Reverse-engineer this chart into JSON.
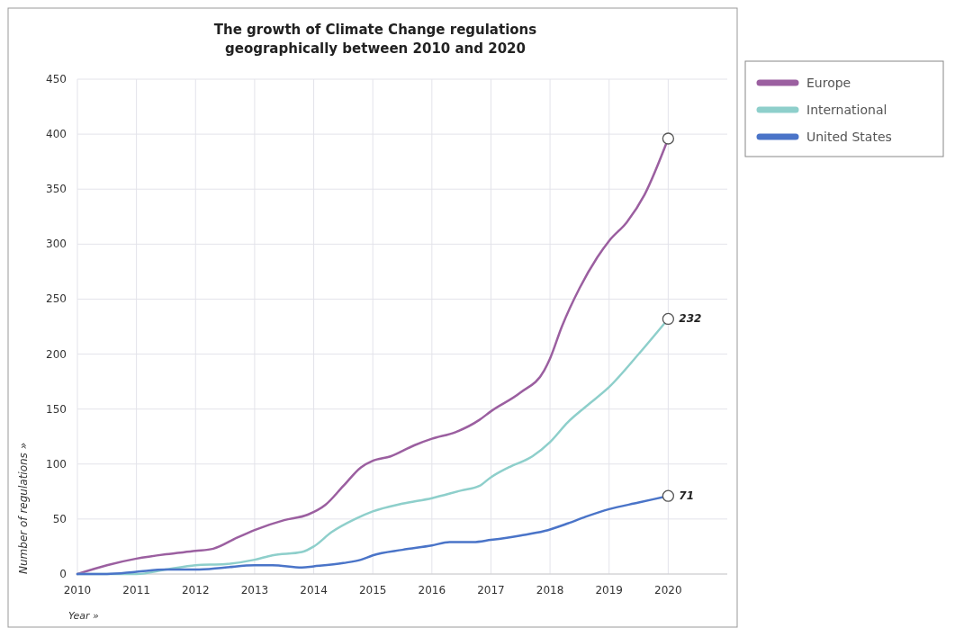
{
  "chart_data": {
    "type": "line",
    "title": "The growth of Climate Change regulations geographically between 2010 and 2020",
    "xlabel": "Year »",
    "ylabel": "Number of regulations »",
    "xlim": [
      2010,
      2021
    ],
    "xticks": [
      2010,
      2011,
      2012,
      2013,
      2014,
      2015,
      2016,
      2017,
      2018,
      2019,
      2020
    ],
    "ylim": [
      0,
      450
    ],
    "yticks": [
      0,
      50,
      100,
      150,
      200,
      250,
      300,
      350,
      400,
      450
    ],
    "grid": true,
    "legend": "top right",
    "marker": "none",
    "series": [
      {
        "name": "Europe",
        "color": "#9b5fa0",
        "x": [
          2010,
          2010.5,
          2011,
          2011.5,
          2012,
          2012.3,
          2012.7,
          2013,
          2013.5,
          2013.9,
          2014.2,
          2014.5,
          2014.8,
          2015,
          2015.3,
          2015.7,
          2016,
          2016.4,
          2016.8,
          2017,
          2017.5,
          2017.9,
          2018,
          2018.2,
          2018.5,
          2018.8,
          2019,
          2019.3,
          2019.6,
          2020
        ],
        "values": [
          0,
          8,
          14,
          18,
          21,
          23,
          33,
          40,
          49,
          54,
          63,
          80,
          97,
          103,
          107,
          117,
          123,
          129,
          140,
          148,
          165,
          185,
          196,
          225,
          260,
          288,
          303,
          320,
          345,
          396
        ],
        "value_labels": [
          null,
          null,
          null,
          null,
          null,
          null,
          null,
          null,
          null,
          null,
          null,
          null,
          null,
          null,
          null,
          null,
          null,
          null,
          null,
          null,
          null,
          null,
          null,
          null,
          null,
          null,
          null,
          null,
          null,
          null
        ]
      },
      {
        "name": "International",
        "color": "#8ecfcb",
        "x": [
          2010,
          2010.5,
          2011,
          2011.5,
          2012,
          2012.5,
          2013,
          2013.3,
          2013.8,
          2014,
          2014.3,
          2014.7,
          2015,
          2015.5,
          2016,
          2016.5,
          2016.8,
          2017,
          2017.3,
          2017.7,
          2018,
          2018.3,
          2018.6,
          2019,
          2019.5,
          2020
        ],
        "values": [
          0,
          0,
          0,
          4,
          8,
          9,
          13,
          17,
          20,
          25,
          38,
          50,
          57,
          64,
          69,
          76,
          80,
          88,
          97,
          107,
          120,
          138,
          152,
          170,
          200,
          232
        ],
        "value_labels": [
          null,
          null,
          null,
          null,
          null,
          null,
          null,
          null,
          null,
          null,
          null,
          null,
          null,
          null,
          null,
          null,
          null,
          null,
          null,
          null,
          null,
          null,
          null,
          null,
          null,
          "232"
        ]
      },
      {
        "name": "United States",
        "color": "#4a74c8",
        "x": [
          2010,
          2010.5,
          2011,
          2011.5,
          2012,
          2012.5,
          2013,
          2013.3,
          2013.8,
          2014,
          2014.5,
          2014.8,
          2015,
          2015.5,
          2016,
          2016.3,
          2016.7,
          2017,
          2017.5,
          2017.9,
          2018.3,
          2018.6,
          2019,
          2019.5,
          2020
        ],
        "values": [
          0,
          0,
          2,
          4,
          4,
          6,
          8,
          8,
          6,
          7,
          10,
          13,
          17,
          22,
          26,
          29,
          29,
          31,
          35,
          39,
          46,
          52,
          59,
          65,
          71
        ],
        "value_labels": [
          null,
          null,
          null,
          null,
          null,
          null,
          null,
          null,
          null,
          null,
          null,
          null,
          null,
          null,
          null,
          null,
          null,
          null,
          null,
          null,
          null,
          null,
          null,
          null,
          "71"
        ]
      }
    ]
  }
}
